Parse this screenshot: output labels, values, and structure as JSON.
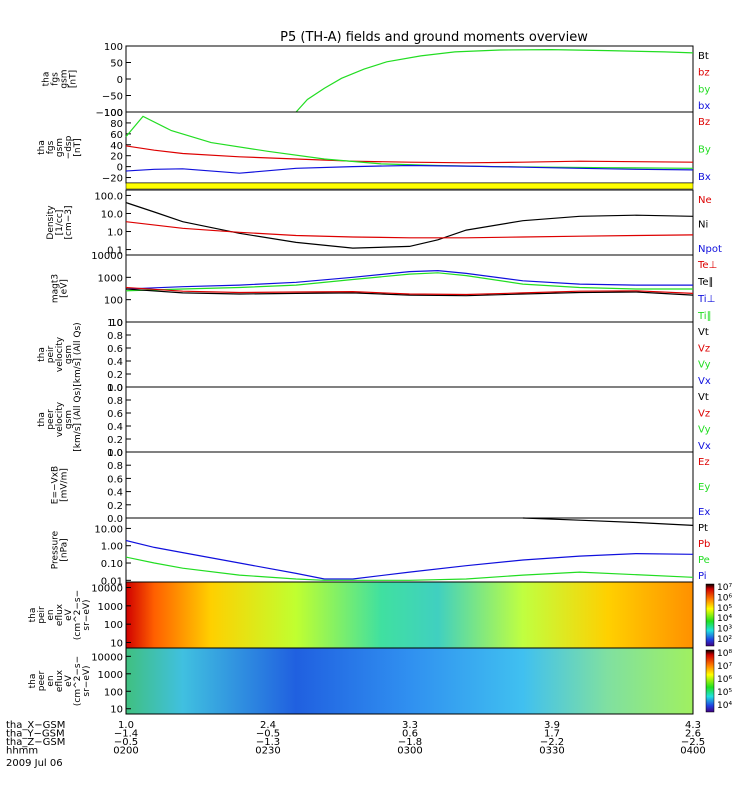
{
  "title": "P5 (TH-A) fields and ground moments overview",
  "colors": {
    "black": "#000000",
    "red": "#dd0000",
    "green": "#22dd22",
    "blue": "#1010dd",
    "yellow": "#ffff00"
  },
  "chart_data": [
    {
      "type": "line",
      "panel": "tha_fgs_gsm",
      "ylabel": [
        "tha",
        "fgs",
        "gsm",
        "[nT]"
      ],
      "ylim": [
        -100,
        100
      ],
      "log": false,
      "ticks": [
        "100",
        "50",
        "0",
        "−50",
        "−100"
      ],
      "tick_values": [
        100,
        50,
        0,
        -50,
        -100
      ],
      "legend": [
        {
          "label": "Bt",
          "color": "#000000"
        },
        {
          "label": "bz",
          "color": "#dd0000"
        },
        {
          "label": "by",
          "color": "#22dd22"
        },
        {
          "label": "bx",
          "color": "#1010dd"
        }
      ],
      "series": [
        {
          "name": "by",
          "color": "#22dd22",
          "x": [
            0.3,
            0.32,
            0.35,
            0.38,
            0.42,
            0.46,
            0.52,
            0.58,
            0.66,
            0.75,
            0.85,
            0.95,
            1.0
          ],
          "y": [
            -100,
            -62,
            -28,
            2,
            30,
            52,
            70,
            82,
            88,
            89,
            86,
            82,
            79
          ]
        }
      ]
    },
    {
      "type": "line",
      "panel": "tha_fgs_gsm_dsp",
      "ylabel": [
        "tha",
        "fgs",
        "gsm",
        "−dsp",
        "[nT]"
      ],
      "ylim": [
        -30,
        100
      ],
      "log": false,
      "ticks": [
        "100",
        "80",
        "60",
        "40",
        "20",
        "0",
        "−20"
      ],
      "tick_values": [
        100,
        80,
        60,
        40,
        20,
        0,
        -20
      ],
      "legend": [
        {
          "label": "Bz",
          "color": "#dd0000"
        },
        {
          "label": "By",
          "color": "#22dd22"
        },
        {
          "label": "Bx",
          "color": "#1010dd"
        }
      ],
      "series": [
        {
          "name": "Bz",
          "color": "#dd0000",
          "x": [
            0,
            0.05,
            0.1,
            0.2,
            0.3,
            0.4,
            0.5,
            0.6,
            0.7,
            0.8,
            0.9,
            1.0
          ],
          "y": [
            38,
            30,
            24,
            18,
            14,
            10,
            8,
            7,
            8,
            10,
            9,
            8
          ]
        },
        {
          "name": "By",
          "color": "#22dd22",
          "x": [
            0,
            0.03,
            0.08,
            0.15,
            0.25,
            0.35,
            0.45,
            0.55,
            0.65,
            0.75,
            0.85,
            1.0
          ],
          "y": [
            55,
            92,
            66,
            44,
            28,
            14,
            5,
            2,
            0,
            -1,
            -2,
            -3
          ]
        },
        {
          "name": "Bx",
          "color": "#1010dd",
          "x": [
            0,
            0.05,
            0.1,
            0.2,
            0.3,
            0.4,
            0.5,
            0.6,
            0.7,
            0.8,
            0.9,
            1.0
          ],
          "y": [
            -8,
            -5,
            -4,
            -12,
            -3,
            0,
            2,
            1,
            -1,
            -3,
            -5,
            -6
          ]
        }
      ]
    },
    {
      "type": "line",
      "panel": "density",
      "ylabel": [
        "Density",
        "[1/cc]",
        "[cm−3]"
      ],
      "ylim": [
        0.05,
        200
      ],
      "log": true,
      "ticks": [
        "100.0",
        "10.0",
        "1.0",
        "0.1"
      ],
      "tick_values": [
        100,
        10,
        1,
        0.1
      ],
      "legend": [
        {
          "label": "Ne",
          "color": "#dd0000"
        },
        {
          "label": "Ni",
          "color": "#000000"
        },
        {
          "label": "Npot",
          "color": "#1010dd"
        }
      ],
      "series": [
        {
          "name": "Ni",
          "color": "#000000",
          "x": [
            0,
            0.05,
            0.1,
            0.2,
            0.3,
            0.4,
            0.5,
            0.55,
            0.6,
            0.7,
            0.8,
            0.9,
            1.0
          ],
          "y": [
            40,
            12,
            3.5,
            0.8,
            0.25,
            0.12,
            0.15,
            0.35,
            1.2,
            4,
            7,
            8,
            7
          ]
        },
        {
          "name": "Ne",
          "color": "#dd0000",
          "x": [
            0,
            0.1,
            0.2,
            0.3,
            0.4,
            0.5,
            0.6,
            0.7,
            0.8,
            0.9,
            1.0
          ],
          "y": [
            3.5,
            1.5,
            0.9,
            0.6,
            0.5,
            0.45,
            0.45,
            0.5,
            0.55,
            0.6,
            0.65
          ]
        }
      ]
    },
    {
      "type": "line",
      "panel": "temperature",
      "ylabel": [
        "magt3",
        "[eV]"
      ],
      "ylim": [
        10,
        10000
      ],
      "log": true,
      "ticks": [
        "10000",
        "1000",
        "100",
        "10"
      ],
      "tick_values": [
        10000,
        1000,
        100,
        10
      ],
      "legend": [
        {
          "label": "Te⊥",
          "color": "#dd0000"
        },
        {
          "label": "Te∥",
          "color": "#000000"
        },
        {
          "label": "Ti⊥",
          "color": "#1010dd"
        },
        {
          "label": "Ti∥",
          "color": "#22dd22"
        }
      ],
      "series": [
        {
          "name": "Ti⊥",
          "color": "#1010dd",
          "x": [
            0,
            0.1,
            0.2,
            0.3,
            0.4,
            0.5,
            0.55,
            0.6,
            0.7,
            0.8,
            0.9,
            1.0
          ],
          "y": [
            300,
            380,
            450,
            600,
            1000,
            1800,
            2000,
            1500,
            700,
            500,
            450,
            450
          ]
        },
        {
          "name": "Ti∥",
          "color": "#22dd22",
          "x": [
            0,
            0.1,
            0.2,
            0.3,
            0.4,
            0.5,
            0.55,
            0.6,
            0.7,
            0.8,
            0.9,
            1.0
          ],
          "y": [
            250,
            300,
            350,
            450,
            800,
            1400,
            1600,
            1200,
            500,
            350,
            300,
            300
          ]
        },
        {
          "name": "Te∥",
          "color": "#000000",
          "x": [
            0,
            0.1,
            0.2,
            0.3,
            0.4,
            0.5,
            0.6,
            0.7,
            0.8,
            0.9,
            1.0
          ],
          "y": [
            300,
            200,
            180,
            190,
            200,
            160,
            150,
            180,
            210,
            220,
            160
          ]
        },
        {
          "name": "Te⊥",
          "color": "#dd0000",
          "x": [
            0,
            0.1,
            0.2,
            0.3,
            0.4,
            0.5,
            0.6,
            0.7,
            0.8,
            0.9,
            1.0
          ],
          "y": [
            350,
            240,
            210,
            220,
            230,
            180,
            170,
            200,
            240,
            250,
            190
          ]
        }
      ]
    },
    {
      "type": "line",
      "panel": "tha_peir_velocity",
      "ylabel": [
        "tha",
        "peir",
        "velocity",
        "gsm",
        "[km/s] (All Qs)"
      ],
      "ylim": [
        0,
        1
      ],
      "log": false,
      "ticks": [
        "1.0",
        "0.8",
        "0.6",
        "0.4",
        "0.2",
        "0.0"
      ],
      "tick_values": [
        1,
        0.8,
        0.6,
        0.4,
        0.2,
        0
      ],
      "legend": [
        {
          "label": "Vt",
          "color": "#000000"
        },
        {
          "label": "Vz",
          "color": "#dd0000"
        },
        {
          "label": "Vy",
          "color": "#22dd22"
        },
        {
          "label": "Vx",
          "color": "#1010dd"
        }
      ],
      "series": []
    },
    {
      "type": "line",
      "panel": "tha_peer_velocity",
      "ylabel": [
        "tha",
        "peer",
        "velocity",
        "gsm",
        "[km/s] (All Qs)"
      ],
      "ylim": [
        0,
        1
      ],
      "log": false,
      "ticks": [
        "1.0",
        "0.8",
        "0.6",
        "0.4",
        "0.2",
        "0.0"
      ],
      "tick_values": [
        1,
        0.8,
        0.6,
        0.4,
        0.2,
        0
      ],
      "legend": [
        {
          "label": "Vt",
          "color": "#000000"
        },
        {
          "label": "Vz",
          "color": "#dd0000"
        },
        {
          "label": "Vy",
          "color": "#22dd22"
        },
        {
          "label": "Vx",
          "color": "#1010dd"
        }
      ],
      "series": []
    },
    {
      "type": "line",
      "panel": "e_field",
      "ylabel": [
        "E=−VxB",
        "[mV/m]"
      ],
      "ylim": [
        0,
        1
      ],
      "log": false,
      "ticks": [
        "1.0",
        "0.8",
        "0.6",
        "0.4",
        "0.2",
        "0.0"
      ],
      "tick_values": [
        1,
        0.8,
        0.6,
        0.4,
        0.2,
        0
      ],
      "legend": [
        {
          "label": "Ez",
          "color": "#dd0000"
        },
        {
          "label": "Ey",
          "color": "#22dd22"
        },
        {
          "label": "Ex",
          "color": "#1010dd"
        }
      ],
      "series": []
    },
    {
      "type": "line",
      "panel": "pressure",
      "ylabel": [
        "Pressure",
        "[nPa]"
      ],
      "ylim": [
        0.008,
        40
      ],
      "log": true,
      "ticks": [
        "10.00",
        "1.00",
        "0.10",
        "0.01"
      ],
      "tick_values": [
        10,
        1,
        0.1,
        0.01
      ],
      "legend": [
        {
          "label": "Pt",
          "color": "#000000"
        },
        {
          "label": "Pb",
          "color": "#dd0000"
        },
        {
          "label": "Pe",
          "color": "#22dd22"
        },
        {
          "label": "Pi",
          "color": "#1010dd"
        }
      ],
      "series": [
        {
          "name": "Pt",
          "color": "#000000",
          "x": [
            0.7,
            0.8,
            0.9,
            1.0
          ],
          "y": [
            40,
            30,
            22,
            15
          ]
        },
        {
          "name": "Pi",
          "color": "#1010dd",
          "x": [
            0,
            0.05,
            0.1,
            0.2,
            0.3,
            0.35,
            0.4,
            0.5,
            0.6,
            0.7,
            0.8,
            0.9,
            1.0
          ],
          "y": [
            2.0,
            0.8,
            0.4,
            0.1,
            0.025,
            0.012,
            0.012,
            0.03,
            0.07,
            0.15,
            0.25,
            0.35,
            0.32
          ]
        },
        {
          "name": "Pe",
          "color": "#22dd22",
          "x": [
            0,
            0.05,
            0.1,
            0.2,
            0.3,
            0.35,
            0.4,
            0.5,
            0.6,
            0.7,
            0.8,
            1.0
          ],
          "y": [
            0.22,
            0.1,
            0.05,
            0.02,
            0.012,
            0.01,
            0.01,
            0.01,
            0.012,
            0.02,
            0.03,
            0.015
          ]
        }
      ]
    },
    {
      "type": "heatmap",
      "panel": "tha_peir_en_eflux",
      "ylabel": [
        "tha",
        "peir",
        "en",
        "eflux",
        "eV",
        "(cm^2−s−",
        "sr−eV)"
      ],
      "ylim": [
        5,
        20000
      ],
      "log": true,
      "ticks": [
        "10000",
        "1000",
        "100",
        "10"
      ],
      "tick_values": [
        10000,
        1000,
        100,
        10
      ],
      "colorbar_ticks": [
        "10⁷",
        "10⁶",
        "10⁵",
        "10⁴",
        "10³",
        "10²"
      ]
    },
    {
      "type": "heatmap",
      "panel": "tha_peer_en_eflux",
      "ylabel": [
        "tha",
        "peer",
        "en",
        "eflux",
        "eV",
        "(cm^2−s−",
        "sr−eV)"
      ],
      "ylim": [
        5,
        30000
      ],
      "log": true,
      "ticks": [
        "10000",
        "1000",
        "100",
        "10"
      ],
      "tick_values": [
        10000,
        1000,
        100,
        10
      ],
      "colorbar_ticks": [
        "10⁸",
        "10⁷",
        "10⁶",
        "10⁵",
        "10⁴"
      ]
    }
  ],
  "x_axis": {
    "rows": [
      {
        "label": "tha_X−GSM",
        "values": [
          "1.0",
          "2.4",
          "3.3",
          "3.9",
          "4.3"
        ]
      },
      {
        "label": "tha_Y−GSM",
        "values": [
          "−1.4",
          "−0.5",
          "0.6",
          "1.7",
          "2.6"
        ]
      },
      {
        "label": "tha_Z−GSM",
        "values": [
          "−0.5",
          "−1.3",
          "−1.8",
          "−2.2",
          "−2.5"
        ]
      },
      {
        "label": "hhmm",
        "values": [
          "0200",
          "0230",
          "0300",
          "0330",
          "0400"
        ]
      }
    ],
    "date": "2009 Jul 06"
  }
}
